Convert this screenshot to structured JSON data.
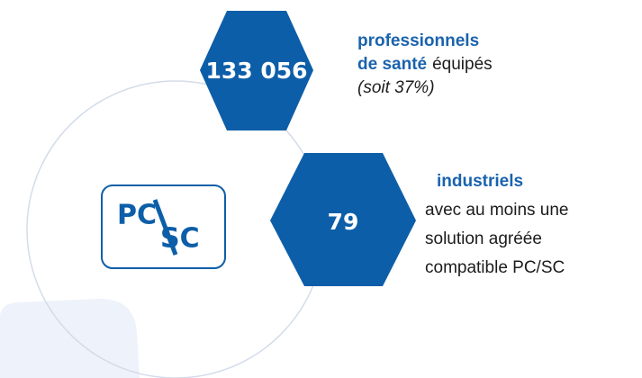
{
  "stat1": {
    "value": "133 056",
    "label_bold_1": "professionnels",
    "label_bold_2": "de santé",
    "label_rest": "équipés",
    "note": "(soit 37%)"
  },
  "stat2": {
    "value": "79",
    "label_bold": "industriels",
    "lines": [
      "avec au moins une",
      "solution agréée",
      "compatible PC/SC"
    ]
  },
  "logo": {
    "top": "PC",
    "bottom": "SC"
  }
}
